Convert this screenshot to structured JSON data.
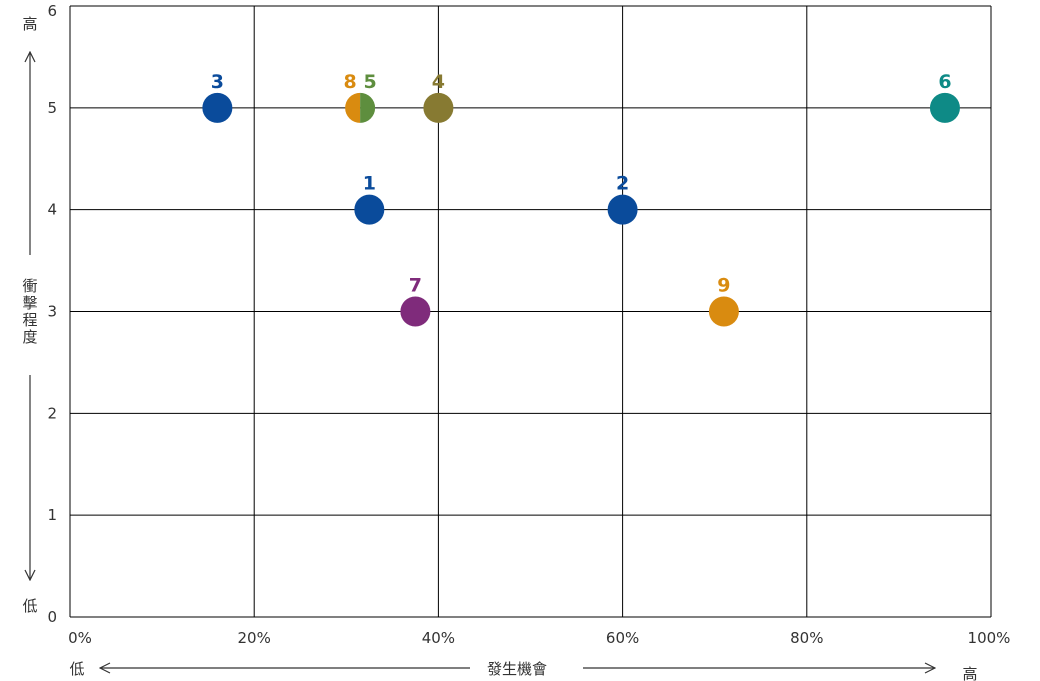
{
  "chart_data": {
    "type": "scatter",
    "xlabel": "發生機會",
    "ylabel": "衝擊程度",
    "x_low_label": "低",
    "x_high_label": "高",
    "y_low_label": "低",
    "y_high_label": "高",
    "xlim": [
      0,
      100
    ],
    "ylim": [
      0,
      6
    ],
    "x_ticks": [
      "0%",
      "20%",
      "40%",
      "60%",
      "80%",
      "100%"
    ],
    "y_ticks": [
      "0",
      "1",
      "2",
      "3",
      "4",
      "5",
      "6"
    ],
    "grid": true,
    "points": [
      {
        "label": "1",
        "x": 32.5,
        "y": 4,
        "color": "#0a4b9b"
      },
      {
        "label": "2",
        "x": 60,
        "y": 4,
        "color": "#0a4b9b"
      },
      {
        "label": "3",
        "x": 16,
        "y": 5,
        "color": "#0a4b9b"
      },
      {
        "label": "4",
        "x": 40,
        "y": 5,
        "color": "#877a32"
      },
      {
        "label": "5",
        "x": 31.5,
        "y": 5,
        "color": "#5e8e3e"
      },
      {
        "label": "6",
        "x": 95,
        "y": 5,
        "color": "#0e8a86"
      },
      {
        "label": "7",
        "x": 37.5,
        "y": 3,
        "color": "#7f2b7b"
      },
      {
        "label": "8",
        "x": 31.5,
        "y": 5,
        "color": "#d98b10"
      },
      {
        "label": "9",
        "x": 71,
        "y": 3,
        "color": "#d98b10"
      }
    ]
  }
}
